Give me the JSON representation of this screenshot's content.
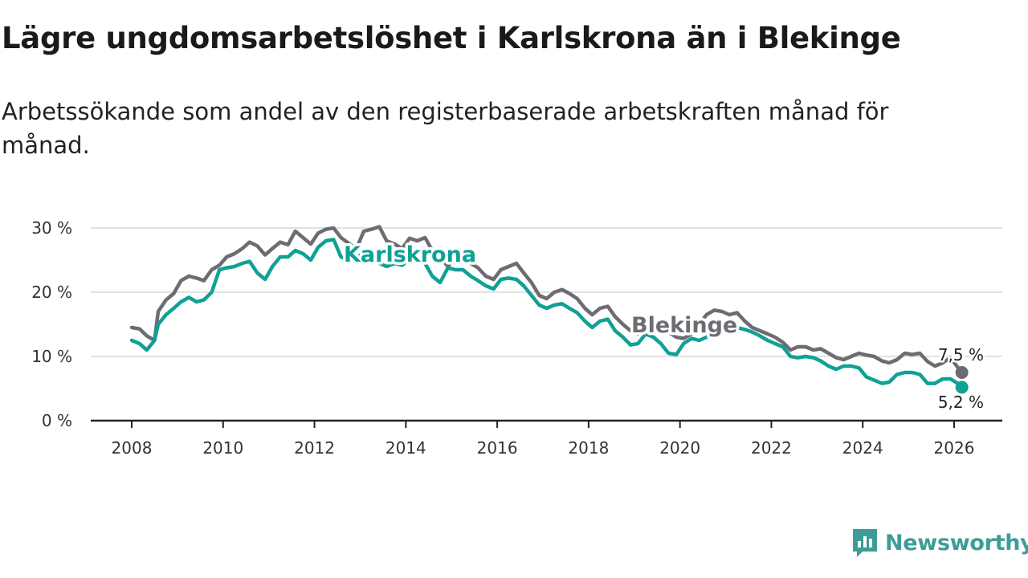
{
  "title": "Lägre ungdomsarbetslöshet i Karlskrona än i Blekinge",
  "subtitle": "Arbetssökande som andel av den registerbaserade arbetskraften månad för månad.",
  "brand": "Newsworthy",
  "colors": {
    "karlskrona": "#10a195",
    "blekinge": "#6e6c72",
    "grid": "#d9d9d9",
    "axis": "#222222",
    "brand": "#3e9c98"
  },
  "chart_data": {
    "type": "line",
    "title": "Lägre ungdomsarbetslöshet i Karlskrona än i Blekinge",
    "ylim": [
      0,
      30
    ],
    "xlim": [
      2007.2,
      2027.1
    ],
    "yticks": [
      0,
      10,
      20,
      30
    ],
    "ytick_labels": [
      "0 %",
      "10 %",
      "20 %",
      "30 %"
    ],
    "xticks": [
      2008,
      2010,
      2012,
      2014,
      2016,
      2018,
      2020,
      2022,
      2024,
      2026
    ],
    "xtick_labels": [
      "2008",
      "2010",
      "2012",
      "2014",
      "2016",
      "2018",
      "2020",
      "2022",
      "2024",
      "2026"
    ],
    "grid": true,
    "series": [
      {
        "name": "Blekinge",
        "end_label": "7,5 %",
        "points": [
          [
            2008.0,
            14.5
          ],
          [
            2008.17,
            14.3
          ],
          [
            2008.33,
            13.2
          ],
          [
            2008.5,
            12.5
          ],
          [
            2008.58,
            17.0
          ],
          [
            2008.75,
            18.8
          ],
          [
            2008.92,
            19.8
          ],
          [
            2009.08,
            21.8
          ],
          [
            2009.25,
            22.5
          ],
          [
            2009.42,
            22.2
          ],
          [
            2009.58,
            21.8
          ],
          [
            2009.75,
            23.5
          ],
          [
            2009.92,
            24.2
          ],
          [
            2010.08,
            25.5
          ],
          [
            2010.25,
            26.0
          ],
          [
            2010.42,
            26.8
          ],
          [
            2010.58,
            27.8
          ],
          [
            2010.75,
            27.2
          ],
          [
            2010.92,
            25.8
          ],
          [
            2011.08,
            26.8
          ],
          [
            2011.25,
            27.8
          ],
          [
            2011.42,
            27.4
          ],
          [
            2011.58,
            29.5
          ],
          [
            2011.75,
            28.5
          ],
          [
            2011.92,
            27.5
          ],
          [
            2012.08,
            29.2
          ],
          [
            2012.25,
            29.8
          ],
          [
            2012.42,
            30.0
          ],
          [
            2012.58,
            28.5
          ],
          [
            2012.75,
            27.6
          ],
          [
            2012.92,
            26.8
          ],
          [
            2013.08,
            29.5
          ],
          [
            2013.25,
            29.8
          ],
          [
            2013.42,
            30.2
          ],
          [
            2013.58,
            28.0
          ],
          [
            2013.75,
            27.5
          ],
          [
            2013.92,
            26.8
          ],
          [
            2014.08,
            28.4
          ],
          [
            2014.25,
            28.0
          ],
          [
            2014.42,
            28.5
          ],
          [
            2014.58,
            26.5
          ],
          [
            2014.75,
            25.5
          ],
          [
            2014.92,
            24.0
          ],
          [
            2015.08,
            25.5
          ],
          [
            2015.25,
            25.8
          ],
          [
            2015.42,
            24.5
          ],
          [
            2015.58,
            23.8
          ],
          [
            2015.75,
            22.5
          ],
          [
            2015.92,
            22.0
          ],
          [
            2016.08,
            23.5
          ],
          [
            2016.25,
            24.0
          ],
          [
            2016.42,
            24.5
          ],
          [
            2016.58,
            23.0
          ],
          [
            2016.75,
            21.5
          ],
          [
            2016.92,
            19.5
          ],
          [
            2017.08,
            19.0
          ],
          [
            2017.25,
            20.0
          ],
          [
            2017.42,
            20.4
          ],
          [
            2017.58,
            19.8
          ],
          [
            2017.75,
            19.0
          ],
          [
            2017.92,
            17.5
          ],
          [
            2018.08,
            16.5
          ],
          [
            2018.25,
            17.5
          ],
          [
            2018.42,
            17.8
          ],
          [
            2018.58,
            16.2
          ],
          [
            2018.75,
            15.0
          ],
          [
            2018.92,
            14.0
          ],
          [
            2019.08,
            13.5
          ],
          [
            2019.25,
            14.8
          ],
          [
            2019.42,
            15.0
          ],
          [
            2019.58,
            14.2
          ],
          [
            2019.75,
            13.8
          ],
          [
            2019.92,
            13.0
          ],
          [
            2020.08,
            12.8
          ],
          [
            2020.25,
            13.5
          ],
          [
            2020.42,
            15.0
          ],
          [
            2020.58,
            16.5
          ],
          [
            2020.75,
            17.2
          ],
          [
            2020.92,
            17.0
          ],
          [
            2021.08,
            16.5
          ],
          [
            2021.25,
            16.8
          ],
          [
            2021.42,
            15.5
          ],
          [
            2021.58,
            14.5
          ],
          [
            2021.75,
            14.0
          ],
          [
            2021.92,
            13.5
          ],
          [
            2022.08,
            13.0
          ],
          [
            2022.25,
            12.2
          ],
          [
            2022.42,
            11.0
          ],
          [
            2022.58,
            11.5
          ],
          [
            2022.75,
            11.5
          ],
          [
            2022.92,
            11.0
          ],
          [
            2023.08,
            11.2
          ],
          [
            2023.25,
            10.5
          ],
          [
            2023.42,
            9.8
          ],
          [
            2023.58,
            9.5
          ],
          [
            2023.75,
            10.0
          ],
          [
            2023.92,
            10.5
          ],
          [
            2024.08,
            10.2
          ],
          [
            2024.25,
            10.0
          ],
          [
            2024.42,
            9.3
          ],
          [
            2024.58,
            9.0
          ],
          [
            2024.75,
            9.5
          ],
          [
            2024.92,
            10.5
          ],
          [
            2025.08,
            10.3
          ],
          [
            2025.25,
            10.5
          ],
          [
            2025.42,
            9.2
          ],
          [
            2025.58,
            8.5
          ],
          [
            2025.75,
            9.0
          ],
          [
            2025.92,
            9.8
          ],
          [
            2026.08,
            8.3
          ],
          [
            2026.17,
            7.5
          ]
        ]
      },
      {
        "name": "Karlskrona",
        "end_label": "5,2 %",
        "points": [
          [
            2008.0,
            12.5
          ],
          [
            2008.17,
            12.0
          ],
          [
            2008.33,
            11.0
          ],
          [
            2008.5,
            12.5
          ],
          [
            2008.58,
            15.0
          ],
          [
            2008.75,
            16.5
          ],
          [
            2008.92,
            17.5
          ],
          [
            2009.08,
            18.5
          ],
          [
            2009.25,
            19.2
          ],
          [
            2009.42,
            18.5
          ],
          [
            2009.58,
            18.8
          ],
          [
            2009.75,
            20.0
          ],
          [
            2009.92,
            23.5
          ],
          [
            2010.08,
            23.8
          ],
          [
            2010.25,
            24.0
          ],
          [
            2010.42,
            24.5
          ],
          [
            2010.58,
            24.8
          ],
          [
            2010.75,
            23.0
          ],
          [
            2010.92,
            22.0
          ],
          [
            2011.08,
            24.0
          ],
          [
            2011.25,
            25.5
          ],
          [
            2011.42,
            25.5
          ],
          [
            2011.58,
            26.5
          ],
          [
            2011.75,
            26.0
          ],
          [
            2011.92,
            25.0
          ],
          [
            2012.08,
            27.0
          ],
          [
            2012.25,
            28.0
          ],
          [
            2012.42,
            28.2
          ],
          [
            2012.58,
            25.5
          ],
          [
            2012.75,
            25.0
          ],
          [
            2012.92,
            25.5
          ],
          [
            2013.08,
            26.0
          ],
          [
            2013.25,
            25.2
          ],
          [
            2013.42,
            24.5
          ],
          [
            2013.58,
            24.0
          ],
          [
            2013.75,
            24.5
          ],
          [
            2013.92,
            24.2
          ],
          [
            2014.08,
            25.2
          ],
          [
            2014.25,
            24.8
          ],
          [
            2014.42,
            24.5
          ],
          [
            2014.58,
            22.5
          ],
          [
            2014.75,
            21.5
          ],
          [
            2014.92,
            23.8
          ],
          [
            2015.08,
            23.5
          ],
          [
            2015.25,
            23.5
          ],
          [
            2015.42,
            22.5
          ],
          [
            2015.58,
            21.8
          ],
          [
            2015.75,
            21.0
          ],
          [
            2015.92,
            20.5
          ],
          [
            2016.08,
            22.0
          ],
          [
            2016.25,
            22.2
          ],
          [
            2016.42,
            22.0
          ],
          [
            2016.58,
            21.0
          ],
          [
            2016.75,
            19.5
          ],
          [
            2016.92,
            18.0
          ],
          [
            2017.08,
            17.5
          ],
          [
            2017.25,
            18.0
          ],
          [
            2017.42,
            18.2
          ],
          [
            2017.58,
            17.5
          ],
          [
            2017.75,
            16.8
          ],
          [
            2017.92,
            15.5
          ],
          [
            2018.08,
            14.5
          ],
          [
            2018.25,
            15.5
          ],
          [
            2018.42,
            15.8
          ],
          [
            2018.58,
            14.0
          ],
          [
            2018.75,
            13.0
          ],
          [
            2018.92,
            11.8
          ],
          [
            2019.08,
            12.0
          ],
          [
            2019.25,
            13.5
          ],
          [
            2019.42,
            13.0
          ],
          [
            2019.58,
            12.0
          ],
          [
            2019.75,
            10.5
          ],
          [
            2019.92,
            10.3
          ],
          [
            2020.08,
            12.0
          ],
          [
            2020.25,
            12.8
          ],
          [
            2020.42,
            12.5
          ],
          [
            2020.58,
            13.0
          ],
          [
            2020.75,
            13.5
          ],
          [
            2020.92,
            14.0
          ],
          [
            2021.08,
            14.5
          ],
          [
            2021.25,
            14.5
          ],
          [
            2021.42,
            14.2
          ],
          [
            2021.58,
            13.8
          ],
          [
            2021.75,
            13.2
          ],
          [
            2021.92,
            12.5
          ],
          [
            2022.08,
            12.0
          ],
          [
            2022.25,
            11.5
          ],
          [
            2022.42,
            10.0
          ],
          [
            2022.58,
            9.8
          ],
          [
            2022.75,
            10.0
          ],
          [
            2022.92,
            9.8
          ],
          [
            2023.08,
            9.3
          ],
          [
            2023.25,
            8.5
          ],
          [
            2023.42,
            8.0
          ],
          [
            2023.58,
            8.5
          ],
          [
            2023.75,
            8.5
          ],
          [
            2023.92,
            8.2
          ],
          [
            2024.08,
            6.8
          ],
          [
            2024.25,
            6.3
          ],
          [
            2024.42,
            5.8
          ],
          [
            2024.58,
            6.0
          ],
          [
            2024.75,
            7.2
          ],
          [
            2024.92,
            7.5
          ],
          [
            2025.08,
            7.5
          ],
          [
            2025.25,
            7.2
          ],
          [
            2025.42,
            5.8
          ],
          [
            2025.58,
            5.8
          ],
          [
            2025.75,
            6.5
          ],
          [
            2025.92,
            6.5
          ],
          [
            2026.08,
            5.8
          ],
          [
            2026.17,
            5.2
          ]
        ]
      }
    ]
  }
}
